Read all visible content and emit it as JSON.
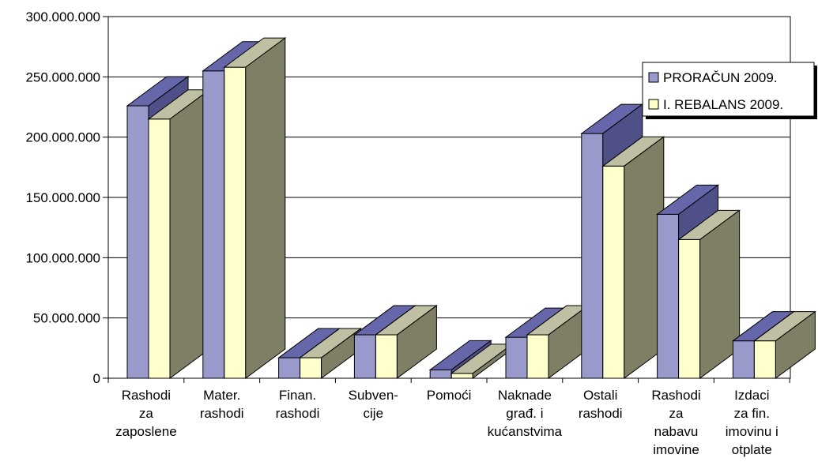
{
  "chart_data": {
    "type": "bar",
    "title": "",
    "xlabel": "",
    "ylabel": "",
    "ylim": [
      0,
      300000000
    ],
    "y_ticks": [
      0,
      50000000,
      100000000,
      150000000,
      200000000,
      250000000,
      300000000
    ],
    "y_tick_labels": [
      "0",
      "50.000.000",
      "100.000.000",
      "150.000.000",
      "200.000.000",
      "250.000.000",
      "300.000.000"
    ],
    "grid": true,
    "three_d": true,
    "legend_position": "top-right",
    "categories": [
      [
        "Rashodi",
        "za",
        "zaposlene"
      ],
      [
        "Mater.",
        "rashodi"
      ],
      [
        "Finan.",
        "rashodi"
      ],
      [
        "Subven-",
        "cije"
      ],
      [
        "Pomoći"
      ],
      [
        "Naknade",
        "građ. i",
        "kućanstvima"
      ],
      [
        "Ostali",
        "rashodi"
      ],
      [
        "Rashodi",
        "za",
        "nabavu",
        "imovine"
      ],
      [
        "Izdaci",
        "za fin.",
        "imovinu i",
        "otplate"
      ]
    ],
    "series": [
      {
        "name": "PRORAČUN 2009.",
        "color": "#9999cc",
        "side_color": "#505088",
        "top_color": "#6666aa",
        "values": [
          226000000,
          255000000,
          17000000,
          36000000,
          7000000,
          34000000,
          203000000,
          136000000,
          31000000
        ]
      },
      {
        "name": "I. REBALANS 2009.",
        "color": "#ffffcc",
        "side_color": "#7f7f66",
        "top_color": "#bfbfa3",
        "values": [
          215000000,
          258000000,
          17000000,
          36000000,
          4000000,
          36000000,
          176000000,
          115000000,
          31000000
        ]
      }
    ]
  }
}
